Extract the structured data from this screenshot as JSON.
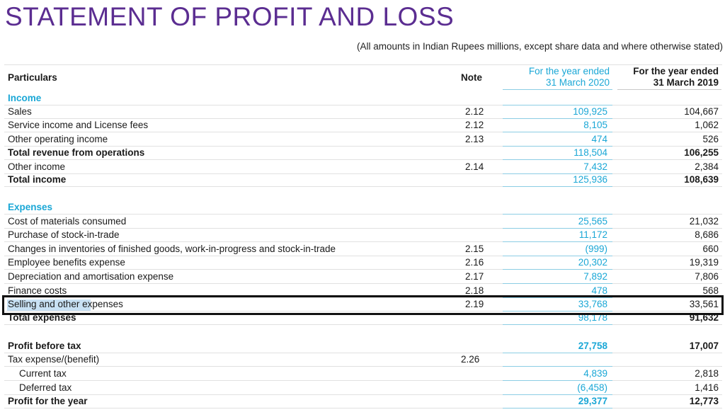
{
  "title": "STATEMENT OF PROFIT AND LOSS",
  "subtitle": "(All amounts in Indian Rupees millions, except share data and where otherwise stated)",
  "header": {
    "particulars": "Particulars",
    "note": "Note",
    "col2020_line1": "For the year ended",
    "col2020_line2": "31 March 2020",
    "col2019_line1": "For the year ended",
    "col2019_line2": "31 March 2019"
  },
  "rows": [
    {
      "label": "Income",
      "note": "",
      "v2020": "",
      "v2019": ""
    },
    {
      "label": "Sales",
      "note": "2.12",
      "v2020": "109,925",
      "v2019": "104,667"
    },
    {
      "label": "Service income and License fees",
      "note": "2.12",
      "v2020": "8,105",
      "v2019": "1,062"
    },
    {
      "label": "Other operating income",
      "note": "2.13",
      "v2020": "474",
      "v2019": "526"
    },
    {
      "label": "Total revenue from operations",
      "note": "",
      "v2020": "118,504",
      "v2019": "106,255"
    },
    {
      "label": "Other income",
      "note": "2.14",
      "v2020": "7,432",
      "v2019": "2,384"
    },
    {
      "label": "Total income",
      "note": "",
      "v2020": "125,936",
      "v2019": "108,639"
    },
    {
      "label": "Expenses",
      "note": "",
      "v2020": "",
      "v2019": ""
    },
    {
      "label": "Cost of materials consumed",
      "note": "",
      "v2020": "25,565",
      "v2019": "21,032"
    },
    {
      "label": "Purchase of stock-in-trade",
      "note": "",
      "v2020": "11,172",
      "v2019": "8,686"
    },
    {
      "label": "Changes in inventories of finished goods, work-in-progress and stock-in-trade",
      "note": "2.15",
      "v2020": "(999)",
      "v2019": "660"
    },
    {
      "label": "Employee benefits expense",
      "note": "2.16",
      "v2020": "20,302",
      "v2019": "19,319"
    },
    {
      "label": "Depreciation and amortisation expense",
      "note": "2.17",
      "v2020": "7,892",
      "v2019": "7,806"
    },
    {
      "label": "Finance costs",
      "note": "2.18",
      "v2020": "478",
      "v2019": "568"
    },
    {
      "label": "Selling and other expenses",
      "note": "2.19",
      "v2020": "33,768",
      "v2019": "33,561"
    },
    {
      "label": "Total expenses",
      "note": "",
      "v2020": "98,178",
      "v2019": "91,632"
    },
    {
      "label": "Profit before tax",
      "note": "",
      "v2020": "27,758",
      "v2019": "17,007"
    },
    {
      "label": "Tax expense/(benefit)",
      "note": "2.26",
      "v2020": "",
      "v2019": ""
    },
    {
      "label": "Current tax",
      "note": "",
      "v2020": "4,839",
      "v2019": "2,818"
    },
    {
      "label": "Deferred tax",
      "note": "",
      "v2020": "(6,458)",
      "v2019": "1,416"
    },
    {
      "label": "Profit for the year",
      "note": "",
      "v2020": "29,377",
      "v2019": "12,773"
    }
  ]
}
